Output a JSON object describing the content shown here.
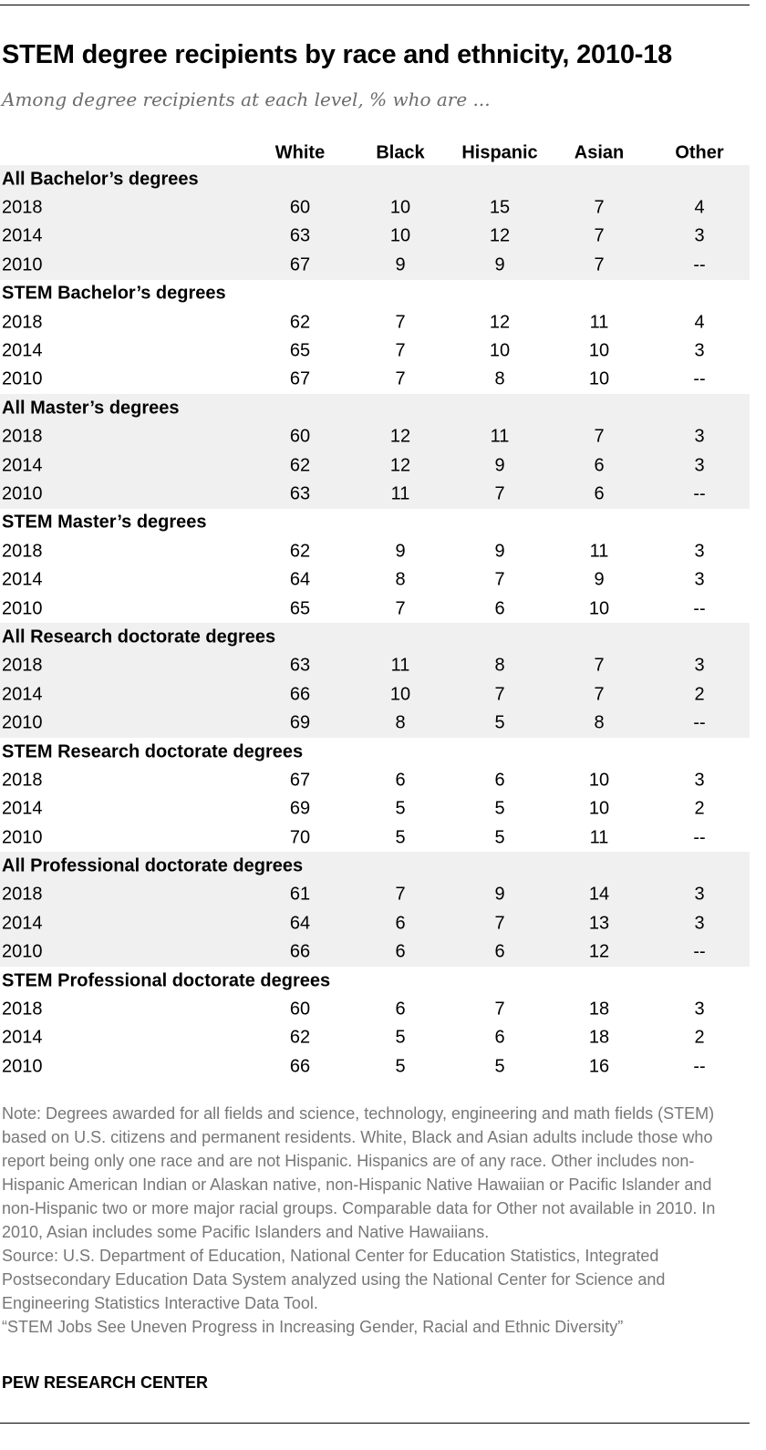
{
  "title": "STEM degree recipients by race and ethnicity, 2010-18",
  "subtitle": "Among degree recipients at each level, % who are ...",
  "chart_data": {
    "type": "table",
    "columns": [
      "White",
      "Black",
      "Hispanic",
      "Asian",
      "Other"
    ],
    "groups": [
      {
        "title": "All Bachelor’s degrees",
        "rows": [
          {
            "year": "2018",
            "values": [
              "60",
              "10",
              "15",
              "7",
              "4"
            ]
          },
          {
            "year": "2014",
            "values": [
              "63",
              "10",
              "12",
              "7",
              "3"
            ]
          },
          {
            "year": "2010",
            "values": [
              "67",
              "9",
              "9",
              "7",
              "--"
            ]
          }
        ]
      },
      {
        "title": "STEM Bachelor’s degrees",
        "rows": [
          {
            "year": "2018",
            "values": [
              "62",
              "7",
              "12",
              "11",
              "4"
            ]
          },
          {
            "year": "2014",
            "values": [
              "65",
              "7",
              "10",
              "10",
              "3"
            ]
          },
          {
            "year": "2010",
            "values": [
              "67",
              "7",
              "8",
              "10",
              "--"
            ]
          }
        ]
      },
      {
        "title": "All Master’s degrees",
        "rows": [
          {
            "year": "2018",
            "values": [
              "60",
              "12",
              "11",
              "7",
              "3"
            ]
          },
          {
            "year": "2014",
            "values": [
              "62",
              "12",
              "9",
              "6",
              "3"
            ]
          },
          {
            "year": "2010",
            "values": [
              "63",
              "11",
              "7",
              "6",
              "--"
            ]
          }
        ]
      },
      {
        "title": "STEM Master’s degrees",
        "rows": [
          {
            "year": "2018",
            "values": [
              "62",
              "9",
              "9",
              "11",
              "3"
            ]
          },
          {
            "year": "2014",
            "values": [
              "64",
              "8",
              "7",
              "9",
              "3"
            ]
          },
          {
            "year": "2010",
            "values": [
              "65",
              "7",
              "6",
              "10",
              "--"
            ]
          }
        ]
      },
      {
        "title": "All Research doctorate degrees",
        "rows": [
          {
            "year": "2018",
            "values": [
              "63",
              "11",
              "8",
              "7",
              "3"
            ]
          },
          {
            "year": "2014",
            "values": [
              "66",
              "10",
              "7",
              "7",
              "2"
            ]
          },
          {
            "year": "2010",
            "values": [
              "69",
              "8",
              "5",
              "8",
              "--"
            ]
          }
        ]
      },
      {
        "title": "STEM Research doctorate degrees",
        "rows": [
          {
            "year": "2018",
            "values": [
              "67",
              "6",
              "6",
              "10",
              "3"
            ]
          },
          {
            "year": "2014",
            "values": [
              "69",
              "5",
              "5",
              "10",
              "2"
            ]
          },
          {
            "year": "2010",
            "values": [
              "70",
              "5",
              "5",
              "11",
              "--"
            ]
          }
        ]
      },
      {
        "title": "All Professional doctorate degrees",
        "rows": [
          {
            "year": "2018",
            "values": [
              "61",
              "7",
              "9",
              "14",
              "3"
            ]
          },
          {
            "year": "2014",
            "values": [
              "64",
              "6",
              "7",
              "13",
              "3"
            ]
          },
          {
            "year": "2010",
            "values": [
              "66",
              "6",
              "6",
              "12",
              "--"
            ]
          }
        ]
      },
      {
        "title": "STEM Professional doctorate degrees",
        "rows": [
          {
            "year": "2018",
            "values": [
              "60",
              "6",
              "7",
              "18",
              "3"
            ]
          },
          {
            "year": "2014",
            "values": [
              "62",
              "5",
              "6",
              "18",
              "2"
            ]
          },
          {
            "year": "2010",
            "values": [
              "66",
              "5",
              "5",
              "16",
              "--"
            ]
          }
        ]
      }
    ]
  },
  "note": "Note: Degrees awarded for all fields and science, technology, engineering and math fields (STEM) based on U.S. citizens and permanent residents. White, Black and Asian adults include those who report being only one race and are not Hispanic. Hispanics are of any race. Other includes non-Hispanic American Indian or Alaskan native, non-Hispanic Native Hawaiian or Pacific Islander and non-Hispanic two or more major racial groups. Comparable data for Other not available in 2010. In 2010, Asian includes some Pacific Islanders and Native Hawaiians.",
  "source": "Source: U.S. Department of Education, National Center for Education Statistics, Integrated Postsecondary Education Data System analyzed using the National Center for Science and Engineering Statistics Interactive Data Tool.",
  "report": "“STEM Jobs See Uneven Progress in Increasing Gender, Racial and Ethnic Diversity”",
  "brand": "PEW RESEARCH CENTER"
}
